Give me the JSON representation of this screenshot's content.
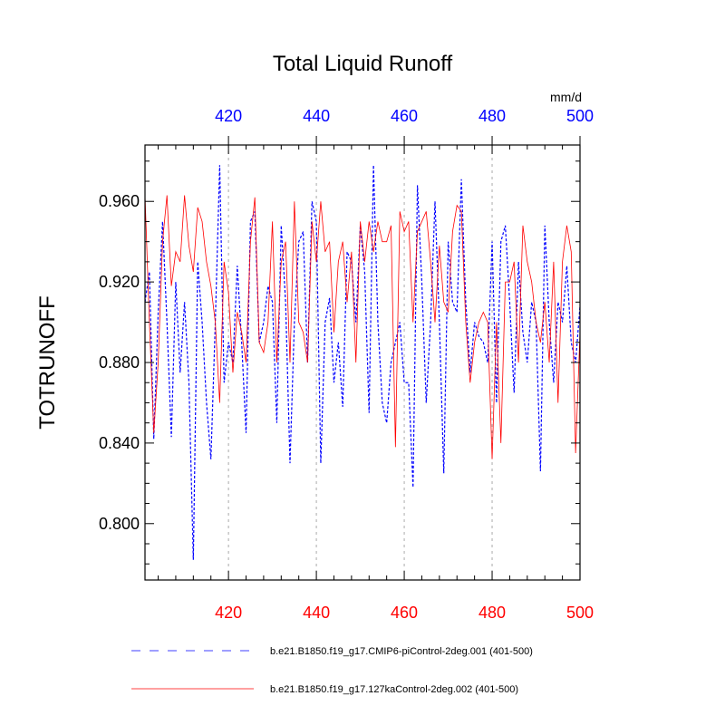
{
  "chart_data": {
    "type": "line",
    "title": "Total Liquid Runoff",
    "ylabel": "TOTRUNOFF",
    "units": "mm/d",
    "xlim": [
      401,
      500
    ],
    "ylim": [
      0.772,
      0.988
    ],
    "yticks": [
      "0.800",
      "0.840",
      "0.880",
      "0.920",
      "0.960"
    ],
    "yticks_values": [
      0.8,
      0.84,
      0.88,
      0.92,
      0.96
    ],
    "xticks_bottom": [
      "420",
      "440",
      "460",
      "480",
      "500"
    ],
    "xticks_top": [
      "420",
      "440",
      "460",
      "480",
      "500"
    ],
    "xticks_values": [
      420,
      440,
      460,
      480,
      500
    ],
    "grid_x": true,
    "legend_placement": "bottom",
    "colors": {
      "series_blue": "#0000ff",
      "series_red": "#ff0000",
      "top_axis": "#0000ff",
      "bottom_axis": "#ff0000",
      "grid": "#aaaaaa"
    },
    "series": [
      {
        "name": "b.e21.B1850.f19_g17.CMIP6-piControl-2deg.001 (401-500)",
        "style": "dashed",
        "color": "#0000ff",
        "x": [
          401,
          402,
          403,
          404,
          405,
          406,
          407,
          408,
          409,
          410,
          411,
          412,
          413,
          414,
          415,
          416,
          417,
          418,
          419,
          420,
          421,
          422,
          423,
          424,
          425,
          426,
          427,
          428,
          429,
          430,
          431,
          432,
          433,
          434,
          435,
          436,
          437,
          438,
          439,
          440,
          441,
          442,
          443,
          444,
          445,
          446,
          447,
          448,
          449,
          450,
          451,
          452,
          453,
          454,
          455,
          456,
          457,
          458,
          459,
          460,
          461,
          462,
          463,
          464,
          465,
          466,
          467,
          468,
          469,
          470,
          471,
          472,
          473,
          474,
          475,
          476,
          477,
          478,
          479,
          480,
          481,
          482,
          483,
          484,
          485,
          486,
          487,
          488,
          489,
          490,
          491,
          492,
          493,
          494,
          495,
          496,
          497,
          498,
          499,
          500
        ],
        "values": [
          0.91,
          0.925,
          0.842,
          0.905,
          0.95,
          0.9,
          0.843,
          0.92,
          0.875,
          0.91,
          0.87,
          0.782,
          0.93,
          0.9,
          0.86,
          0.832,
          0.9,
          0.978,
          0.87,
          0.89,
          0.88,
          0.928,
          0.89,
          0.845,
          0.95,
          0.955,
          0.89,
          0.9,
          0.918,
          0.91,
          0.85,
          0.948,
          0.91,
          0.83,
          0.9,
          0.94,
          0.945,
          0.88,
          0.96,
          0.95,
          0.83,
          0.9,
          0.912,
          0.87,
          0.89,
          0.858,
          0.935,
          0.93,
          0.9,
          0.948,
          0.925,
          0.855,
          0.978,
          0.9,
          0.86,
          0.85,
          0.88,
          0.89,
          0.9,
          0.87,
          0.87,
          0.818,
          0.968,
          0.92,
          0.86,
          0.9,
          0.96,
          0.9,
          0.825,
          0.94,
          0.91,
          0.905,
          0.971,
          0.91,
          0.875,
          0.9,
          0.893,
          0.89,
          0.88,
          0.94,
          0.86,
          0.94,
          0.948,
          0.91,
          0.865,
          0.93,
          0.895,
          0.88,
          0.91,
          0.9,
          0.826,
          0.948,
          0.9,
          0.87,
          0.91,
          0.9,
          0.928,
          0.89,
          0.88,
          0.908
        ]
      },
      {
        "name": "b.e21.B1850.f19_g17.127kaControl-2deg.002 (401-500)",
        "style": "solid",
        "color": "#ff0000",
        "x": [
          401,
          402,
          403,
          404,
          405,
          406,
          407,
          408,
          409,
          410,
          411,
          412,
          413,
          414,
          415,
          416,
          417,
          418,
          419,
          420,
          421,
          422,
          423,
          424,
          425,
          426,
          427,
          428,
          429,
          430,
          431,
          432,
          433,
          434,
          435,
          436,
          437,
          438,
          439,
          440,
          441,
          442,
          443,
          444,
          445,
          446,
          447,
          448,
          449,
          450,
          451,
          452,
          453,
          454,
          455,
          456,
          457,
          458,
          459,
          460,
          461,
          462,
          463,
          464,
          465,
          466,
          467,
          468,
          469,
          470,
          471,
          472,
          473,
          474,
          475,
          476,
          477,
          478,
          479,
          480,
          481,
          482,
          483,
          484,
          485,
          486,
          487,
          488,
          489,
          490,
          491,
          492,
          493,
          494,
          495,
          496,
          497,
          498,
          499,
          500
        ],
        "values": [
          0.963,
          0.9,
          0.845,
          0.88,
          0.94,
          0.963,
          0.918,
          0.935,
          0.93,
          0.963,
          0.938,
          0.925,
          0.957,
          0.95,
          0.93,
          0.918,
          0.9,
          0.86,
          0.93,
          0.915,
          0.875,
          0.905,
          0.895,
          0.88,
          0.94,
          0.962,
          0.89,
          0.885,
          0.9,
          0.95,
          0.88,
          0.93,
          0.94,
          0.88,
          0.96,
          0.9,
          0.895,
          0.88,
          0.95,
          0.93,
          0.96,
          0.935,
          0.94,
          0.895,
          0.93,
          0.94,
          0.91,
          0.935,
          0.88,
          0.95,
          0.93,
          0.95,
          0.935,
          0.95,
          0.94,
          0.94,
          0.948,
          0.838,
          0.955,
          0.945,
          0.95,
          0.9,
          0.945,
          0.95,
          0.955,
          0.93,
          0.9,
          0.938,
          0.91,
          0.905,
          0.945,
          0.958,
          0.955,
          0.9,
          0.87,
          0.89,
          0.9,
          0.905,
          0.9,
          0.832,
          0.9,
          0.84,
          0.92,
          0.92,
          0.93,
          0.88,
          0.948,
          0.93,
          0.92,
          0.9,
          0.89,
          0.91,
          0.88,
          0.93,
          0.86,
          0.93,
          0.948,
          0.935,
          0.835,
          0.895
        ]
      }
    ]
  }
}
